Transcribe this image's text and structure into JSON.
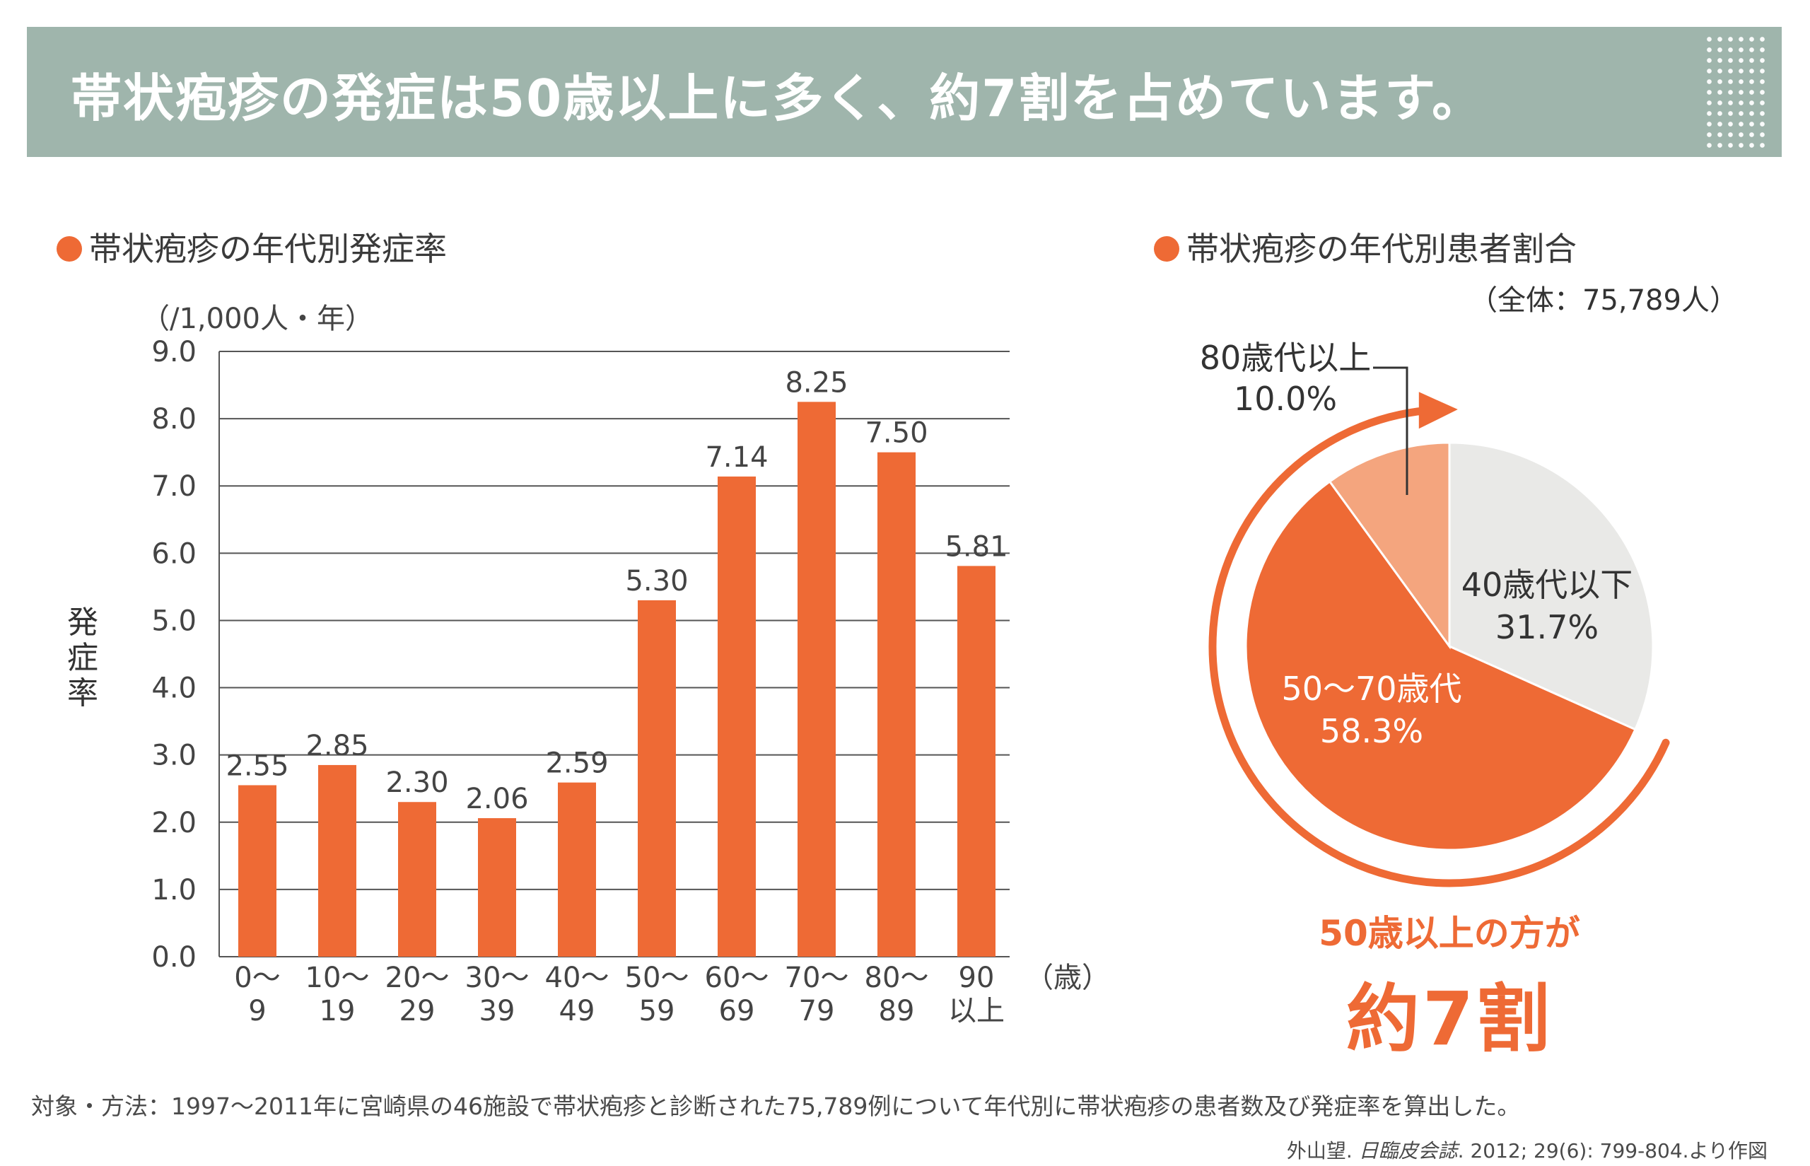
{
  "header": {
    "title": "帯状疱疹の発症は50歳以上に多く、約7割を占めています。"
  },
  "bar_section": {
    "title": "帯状疱疹の年代別発症率",
    "unit": "（/1,000人・年）",
    "ylabel": "発症率",
    "xunit": "（歳）"
  },
  "pie_section": {
    "title": "帯状疱疹の年代別患者割合",
    "total": "（全体：75,789人）"
  },
  "highlight": {
    "line1": "50歳以上の方が",
    "line2": "約7割"
  },
  "footnote": "対象・方法：1997～2011年に宮崎県の46施設で帯状疱疹と診断された75,789例について年代別に帯状疱疹の患者数及び発症率を算出した。",
  "citation": {
    "author": "外山望. ",
    "journal": "日臨皮会誌",
    "rest": ". 2012; 29(6): 799-804.より作図"
  },
  "colors": {
    "bar": "#ee6a35",
    "pie_50_70": "#ee6a35",
    "pie_40_below": "#e9e9e7",
    "pie_80_above": "#f4a57e",
    "banner": "#9fb5ac"
  },
  "chart_data": [
    {
      "type": "bar",
      "title": "帯状疱疹の年代別発症率",
      "ylabel": "発症率",
      "yunit": "（/1,000人・年）",
      "xunit": "（歳）",
      "ylim": [
        0,
        9.0
      ],
      "yticks": [
        "0.0",
        "1.0",
        "2.0",
        "3.0",
        "4.0",
        "5.0",
        "6.0",
        "7.0",
        "8.0",
        "9.0"
      ],
      "grid": true,
      "categories": [
        [
          "0～",
          "9"
        ],
        [
          "10～",
          "19"
        ],
        [
          "20～",
          "29"
        ],
        [
          "30～",
          "39"
        ],
        [
          "40～",
          "49"
        ],
        [
          "50～",
          "59"
        ],
        [
          "60～",
          "69"
        ],
        [
          "70～",
          "79"
        ],
        [
          "80～",
          "89"
        ],
        [
          "90",
          "以上"
        ]
      ],
      "values": [
        2.55,
        2.85,
        2.3,
        2.06,
        2.59,
        5.3,
        7.14,
        8.25,
        7.5,
        5.81
      ],
      "value_labels": [
        "2.55",
        "2.85",
        "2.30",
        "2.06",
        "2.59",
        "5.30",
        "7.14",
        "8.25",
        "7.50",
        "5.81"
      ]
    },
    {
      "type": "pie",
      "title": "帯状疱疹の年代別患者割合",
      "total_label": "（全体：75,789人）",
      "slices": [
        {
          "label": "40歳代以下",
          "value": 31.7,
          "pct_label": "31.7%"
        },
        {
          "label": "50～70歳代",
          "value": 58.3,
          "pct_label": "58.3%"
        },
        {
          "label": "80歳代以上",
          "value": 10.0,
          "pct_label": "10.0%"
        }
      ]
    }
  ]
}
